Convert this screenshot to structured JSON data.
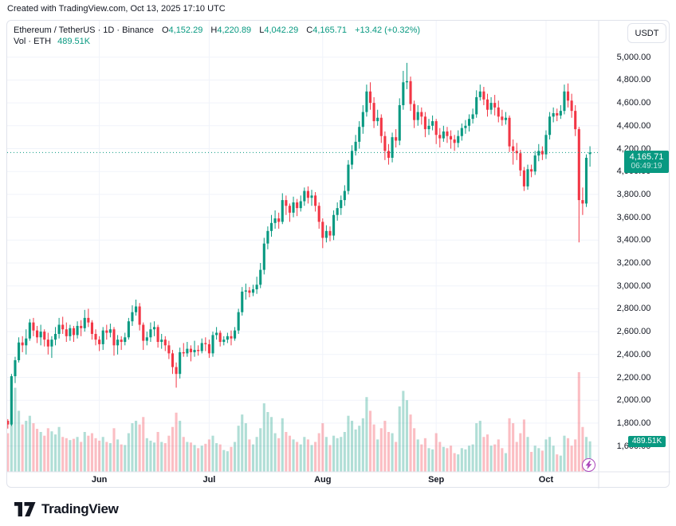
{
  "header": {
    "created_with": "Created with TradingView.com, Oct 13, 2025 17:10 UTC"
  },
  "legend": {
    "symbol_line": "Ethereum / TetherUS · 1D · Binance",
    "o_label": "O",
    "o_value": "4,152.29",
    "h_label": "H",
    "h_value": "4,220.89",
    "l_label": "L",
    "l_value": "4,042.29",
    "c_label": "C",
    "c_value": "4,165.71",
    "change": "+13.42 (+0.32%)",
    "vol_label": "Vol · ETH",
    "vol_value": "489.51K"
  },
  "axis": {
    "currency_button": "USDT",
    "price_badge": {
      "price": "4,165.71",
      "countdown": "06:49:19"
    },
    "volume_badge": "489.51K"
  },
  "footer": {
    "logo_text": "TradingView"
  },
  "colors": {
    "up": "#089981",
    "down": "#f23645",
    "vol_up": "rgba(8,153,129,0.32)",
    "vol_down": "rgba(242,54,69,0.32)",
    "grid": "#f0f3fa",
    "separator": "#e0e3eb",
    "text": "#131722",
    "badge": "#089981",
    "flash": "#ab47bc"
  },
  "chart_data": {
    "type": "candlestick+volume",
    "title": "Ethereum / TetherUS · 1D · Binance",
    "price_axis_unit": "USDT",
    "current_price": 4165.71,
    "price_ticks": [
      {
        "value": 5000,
        "label": "5,000.00"
      },
      {
        "value": 4800,
        "label": "4,800.00"
      },
      {
        "value": 4600,
        "label": "4,600.00"
      },
      {
        "value": 4400,
        "label": "4,400.00"
      },
      {
        "value": 4200,
        "label": "4,200.00"
      },
      {
        "value": 4000,
        "label": "4,000.00"
      },
      {
        "value": 3800,
        "label": "3,800.00"
      },
      {
        "value": 3600,
        "label": "3,600.00"
      },
      {
        "value": 3400,
        "label": "3,400.00"
      },
      {
        "value": 3200,
        "label": "3,200.00"
      },
      {
        "value": 3000,
        "label": "3,000.00"
      },
      {
        "value": 2800,
        "label": "2,800.00"
      },
      {
        "value": 2600,
        "label": "2,600.00"
      },
      {
        "value": 2400,
        "label": "2,400.00"
      },
      {
        "value": 2200,
        "label": "2,200.00"
      },
      {
        "value": 2000,
        "label": "2,000.00"
      },
      {
        "value": 1800,
        "label": "1,800.00"
      },
      {
        "value": 1600,
        "label": "1,600.00"
      }
    ],
    "month_marks": [
      {
        "label": "Jun",
        "index": 25
      },
      {
        "label": "Jul",
        "index": 55
      },
      {
        "label": "Aug",
        "index": 86
      },
      {
        "label": "Sep",
        "index": 117
      },
      {
        "label": "Oct",
        "index": 147
      }
    ],
    "volume_scale_max_k": 1600,
    "last_volume_k": 489.51,
    "candles": [
      [
        1820,
        1835,
        1752,
        1788
      ],
      [
        1788,
        2230,
        1775,
        2210
      ],
      [
        2210,
        2380,
        2150,
        2350
      ],
      [
        2350,
        2550,
        2330,
        2505
      ],
      [
        2505,
        2560,
        2420,
        2480
      ],
      [
        2480,
        2620,
        2400,
        2540
      ],
      [
        2540,
        2710,
        2520,
        2680
      ],
      [
        2680,
        2720,
        2560,
        2610
      ],
      [
        2610,
        2650,
        2500,
        2550
      ],
      [
        2550,
        2660,
        2480,
        2600
      ],
      [
        2600,
        2620,
        2470,
        2530
      ],
      [
        2530,
        2590,
        2400,
        2470
      ],
      [
        2470,
        2560,
        2370,
        2530
      ],
      [
        2530,
        2640,
        2480,
        2580
      ],
      [
        2580,
        2720,
        2540,
        2660
      ],
      [
        2660,
        2730,
        2580,
        2620
      ],
      [
        2620,
        2680,
        2510,
        2560
      ],
      [
        2560,
        2660,
        2520,
        2630
      ],
      [
        2630,
        2650,
        2510,
        2570
      ],
      [
        2570,
        2690,
        2540,
        2650
      ],
      [
        2650,
        2700,
        2560,
        2630
      ],
      [
        2630,
        2790,
        2600,
        2720
      ],
      [
        2720,
        2800,
        2640,
        2680
      ],
      [
        2680,
        2700,
        2530,
        2580
      ],
      [
        2580,
        2620,
        2480,
        2530
      ],
      [
        2530,
        2560,
        2430,
        2490
      ],
      [
        2490,
        2640,
        2440,
        2610
      ],
      [
        2610,
        2660,
        2530,
        2590
      ],
      [
        2590,
        2670,
        2550,
        2620
      ],
      [
        2620,
        2640,
        2390,
        2480
      ],
      [
        2480,
        2570,
        2400,
        2530
      ],
      [
        2530,
        2560,
        2440,
        2510
      ],
      [
        2510,
        2590,
        2480,
        2550
      ],
      [
        2550,
        2720,
        2530,
        2690
      ],
      [
        2690,
        2830,
        2650,
        2770
      ],
      [
        2770,
        2880,
        2740,
        2820
      ],
      [
        2820,
        2850,
        2610,
        2660
      ],
      [
        2660,
        2680,
        2440,
        2520
      ],
      [
        2520,
        2600,
        2480,
        2550
      ],
      [
        2550,
        2680,
        2510,
        2620
      ],
      [
        2620,
        2690,
        2560,
        2640
      ],
      [
        2640,
        2660,
        2460,
        2510
      ],
      [
        2510,
        2580,
        2450,
        2530
      ],
      [
        2530,
        2560,
        2430,
        2480
      ],
      [
        2480,
        2520,
        2360,
        2410
      ],
      [
        2410,
        2440,
        2230,
        2290
      ],
      [
        2290,
        2330,
        2110,
        2230
      ],
      [
        2230,
        2460,
        2190,
        2420
      ],
      [
        2420,
        2500,
        2380,
        2410
      ],
      [
        2410,
        2510,
        2380,
        2450
      ],
      [
        2450,
        2480,
        2340,
        2420
      ],
      [
        2420,
        2520,
        2380,
        2440
      ],
      [
        2440,
        2480,
        2390,
        2430
      ],
      [
        2430,
        2540,
        2410,
        2500
      ],
      [
        2500,
        2550,
        2430,
        2490
      ],
      [
        2490,
        2530,
        2370,
        2410
      ],
      [
        2410,
        2600,
        2380,
        2570
      ],
      [
        2570,
        2640,
        2530,
        2590
      ],
      [
        2590,
        2610,
        2470,
        2510
      ],
      [
        2510,
        2560,
        2480,
        2530
      ],
      [
        2530,
        2590,
        2500,
        2560
      ],
      [
        2560,
        2610,
        2480,
        2540
      ],
      [
        2540,
        2640,
        2520,
        2610
      ],
      [
        2610,
        2800,
        2580,
        2770
      ],
      [
        2770,
        2990,
        2740,
        2950
      ],
      [
        2950,
        3020,
        2880,
        2960
      ],
      [
        2960,
        2990,
        2900,
        2940
      ],
      [
        2940,
        3010,
        2910,
        2970
      ],
      [
        2970,
        3080,
        2930,
        3010
      ],
      [
        3010,
        3200,
        2980,
        3140
      ],
      [
        3140,
        3420,
        3100,
        3370
      ],
      [
        3370,
        3520,
        3320,
        3480
      ],
      [
        3480,
        3620,
        3430,
        3550
      ],
      [
        3550,
        3660,
        3500,
        3590
      ],
      [
        3590,
        3640,
        3500,
        3560
      ],
      [
        3560,
        3810,
        3540,
        3750
      ],
      [
        3750,
        3790,
        3620,
        3700
      ],
      [
        3700,
        3720,
        3560,
        3640
      ],
      [
        3640,
        3780,
        3600,
        3730
      ],
      [
        3730,
        3760,
        3610,
        3680
      ],
      [
        3680,
        3790,
        3650,
        3740
      ],
      [
        3740,
        3860,
        3700,
        3830
      ],
      [
        3830,
        3870,
        3720,
        3770
      ],
      [
        3770,
        3840,
        3700,
        3790
      ],
      [
        3790,
        3820,
        3650,
        3700
      ],
      [
        3700,
        3730,
        3500,
        3560
      ],
      [
        3560,
        3590,
        3330,
        3420
      ],
      [
        3420,
        3530,
        3380,
        3480
      ],
      [
        3480,
        3520,
        3390,
        3440
      ],
      [
        3440,
        3660,
        3400,
        3620
      ],
      [
        3620,
        3730,
        3570,
        3680
      ],
      [
        3680,
        3790,
        3620,
        3750
      ],
      [
        3750,
        3880,
        3700,
        3830
      ],
      [
        3830,
        4100,
        3800,
        4060
      ],
      [
        4060,
        4230,
        4020,
        4180
      ],
      [
        4180,
        4320,
        4140,
        4260
      ],
      [
        4260,
        4440,
        4200,
        4390
      ],
      [
        4390,
        4580,
        4330,
        4520
      ],
      [
        4520,
        4760,
        4480,
        4700
      ],
      [
        4700,
        4780,
        4540,
        4600
      ],
      [
        4600,
        4650,
        4380,
        4440
      ],
      [
        4440,
        4540,
        4400,
        4470
      ],
      [
        4470,
        4500,
        4250,
        4310
      ],
      [
        4310,
        4350,
        4100,
        4180
      ],
      [
        4180,
        4240,
        4060,
        4120
      ],
      [
        4120,
        4340,
        4080,
        4300
      ],
      [
        4300,
        4370,
        4210,
        4270
      ],
      [
        4270,
        4640,
        4230,
        4580
      ],
      [
        4580,
        4880,
        4540,
        4780
      ],
      [
        4780,
        4950,
        4720,
        4790
      ],
      [
        4790,
        4830,
        4530,
        4590
      ],
      [
        4590,
        4620,
        4380,
        4450
      ],
      [
        4450,
        4580,
        4400,
        4520
      ],
      [
        4520,
        4560,
        4410,
        4480
      ],
      [
        4480,
        4520,
        4300,
        4370
      ],
      [
        4370,
        4460,
        4320,
        4400
      ],
      [
        4400,
        4490,
        4360,
        4440
      ],
      [
        4440,
        4460,
        4240,
        4320
      ],
      [
        4320,
        4380,
        4210,
        4290
      ],
      [
        4290,
        4400,
        4260,
        4350
      ],
      [
        4350,
        4390,
        4250,
        4310
      ],
      [
        4310,
        4360,
        4200,
        4280
      ],
      [
        4280,
        4320,
        4180,
        4250
      ],
      [
        4250,
        4360,
        4210,
        4310
      ],
      [
        4310,
        4420,
        4270,
        4380
      ],
      [
        4380,
        4450,
        4330,
        4400
      ],
      [
        4400,
        4500,
        4350,
        4460
      ],
      [
        4460,
        4550,
        4420,
        4500
      ],
      [
        4500,
        4710,
        4470,
        4650
      ],
      [
        4650,
        4760,
        4620,
        4700
      ],
      [
        4700,
        4740,
        4580,
        4630
      ],
      [
        4630,
        4680,
        4480,
        4540
      ],
      [
        4540,
        4650,
        4500,
        4600
      ],
      [
        4600,
        4670,
        4490,
        4560
      ],
      [
        4560,
        4620,
        4430,
        4480
      ],
      [
        4480,
        4540,
        4400,
        4450
      ],
      [
        4450,
        4520,
        4410,
        4470
      ],
      [
        4470,
        4490,
        4170,
        4220
      ],
      [
        4220,
        4280,
        4060,
        4180
      ],
      [
        4180,
        4250,
        4100,
        4160
      ],
      [
        4160,
        4190,
        3960,
        4010
      ],
      [
        4010,
        4040,
        3830,
        3870
      ],
      [
        3870,
        4060,
        3840,
        4020
      ],
      [
        4020,
        4060,
        3950,
        4000
      ],
      [
        4000,
        4180,
        3970,
        4140
      ],
      [
        4140,
        4240,
        4090,
        4180
      ],
      [
        4180,
        4220,
        4100,
        4150
      ],
      [
        4150,
        4360,
        4110,
        4320
      ],
      [
        4320,
        4520,
        4280,
        4480
      ],
      [
        4480,
        4560,
        4430,
        4510
      ],
      [
        4510,
        4550,
        4440,
        4490
      ],
      [
        4490,
        4580,
        4460,
        4530
      ],
      [
        4530,
        4760,
        4500,
        4700
      ],
      [
        4700,
        4770,
        4560,
        4620
      ],
      [
        4620,
        4680,
        4470,
        4530
      ],
      [
        4530,
        4580,
        4310,
        4370
      ],
      [
        4370,
        4390,
        3380,
        3750
      ],
      [
        3750,
        3860,
        3620,
        3720
      ],
      [
        3720,
        4150,
        3690,
        4120
      ],
      [
        4152.29,
        4220.89,
        4042.29,
        4165.71
      ]
    ],
    "volumes_k": [
      620,
      1500,
      1350,
      980,
      760,
      820,
      900,
      780,
      690,
      640,
      580,
      700,
      650,
      600,
      720,
      560,
      540,
      510,
      530,
      560,
      480,
      640,
      580,
      620,
      540,
      500,
      560,
      480,
      460,
      700,
      520,
      440,
      430,
      620,
      780,
      820,
      760,
      880,
      540,
      500,
      470,
      640,
      480,
      460,
      580,
      720,
      950,
      820,
      560,
      480,
      470,
      430,
      380,
      420,
      450,
      520,
      580,
      460,
      440,
      350,
      330,
      400,
      480,
      740,
      920,
      780,
      520,
      440,
      560,
      700,
      1100,
      960,
      880,
      620,
      540,
      860,
      640,
      580,
      520,
      480,
      440,
      560,
      520,
      430,
      480,
      620,
      780,
      560,
      430,
      580,
      540,
      560,
      640,
      900,
      820,
      680,
      740,
      860,
      1200,
      980,
      760,
      520,
      700,
      820,
      640,
      620,
      480,
      1050,
      1300,
      1150,
      920,
      700,
      520,
      440,
      540,
      380,
      360,
      620,
      480,
      400,
      380,
      420,
      300,
      280,
      380,
      360,
      420,
      440,
      780,
      820,
      560,
      600,
      420,
      440,
      520,
      380,
      300,
      860,
      780,
      480,
      620,
      840,
      560,
      320,
      420,
      380,
      340,
      520,
      560,
      420,
      280,
      260,
      580,
      540,
      420,
      520,
      1600,
      720,
      560,
      489.51
    ]
  }
}
